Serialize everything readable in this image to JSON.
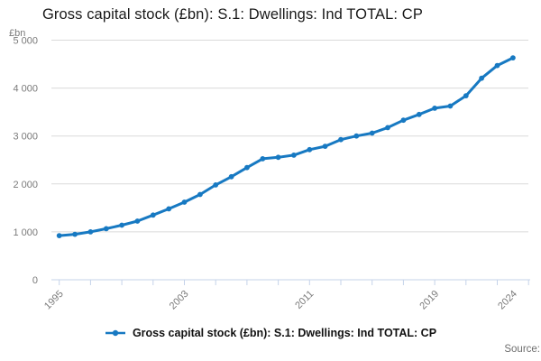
{
  "title": "Gross capital stock (£bn): S.1: Dwellings: Ind TOTAL: CP",
  "y_axis_unit": "£bn",
  "source_label": "Source:",
  "legend": {
    "label": "Gross capital stock (£bn): S.1: Dwellings: Ind TOTAL: CP",
    "marker": "line-with-dot"
  },
  "colors": {
    "series": "#1779c2",
    "grid": "#dadada",
    "axis": "#c5d3ea",
    "tick_label": "#7a7a7a",
    "title_text": "#191919",
    "source_text": "#6e6e6e"
  },
  "chart_data": {
    "type": "line",
    "title": "Gross capital stock (£bn): S.1: Dwellings: Ind TOTAL: CP",
    "xlabel": "",
    "ylabel": "£bn",
    "xlim": [
      1995,
      2025
    ],
    "ylim": [
      0,
      5000
    ],
    "grid": "horizontal",
    "legend_position": "bottom",
    "marker": "circle",
    "y_ticks": [
      0,
      1000,
      2000,
      3000,
      4000,
      5000
    ],
    "y_tick_labels": [
      "0",
      "1 000",
      "2 000",
      "3 000",
      "4 000",
      "5 000"
    ],
    "x_tick_step": 2,
    "x_tick_labels": [
      {
        "value": 1995,
        "label": "1995"
      },
      {
        "value": 2003,
        "label": "2003"
      },
      {
        "value": 2011,
        "label": "2011"
      },
      {
        "value": 2019,
        "label": "2019"
      },
      {
        "value": 2024,
        "label": "2024"
      }
    ],
    "x": [
      1995,
      1996,
      1997,
      1998,
      1999,
      2000,
      2001,
      2002,
      2003,
      2004,
      2005,
      2006,
      2007,
      2008,
      2009,
      2010,
      2011,
      2012,
      2013,
      2014,
      2015,
      2016,
      2017,
      2018,
      2019,
      2020,
      2021,
      2022,
      2023,
      2024
    ],
    "series": [
      {
        "name": "Gross capital stock (£bn): S.1: Dwellings: Ind TOTAL: CP",
        "values": [
          920,
          950,
          1000,
          1065,
          1140,
          1225,
          1350,
          1480,
          1620,
          1780,
          1980,
          2150,
          2340,
          2525,
          2555,
          2600,
          2715,
          2785,
          2925,
          3000,
          3060,
          3175,
          3330,
          3450,
          3580,
          3625,
          3840,
          4205,
          4470,
          4630
        ]
      }
    ]
  }
}
